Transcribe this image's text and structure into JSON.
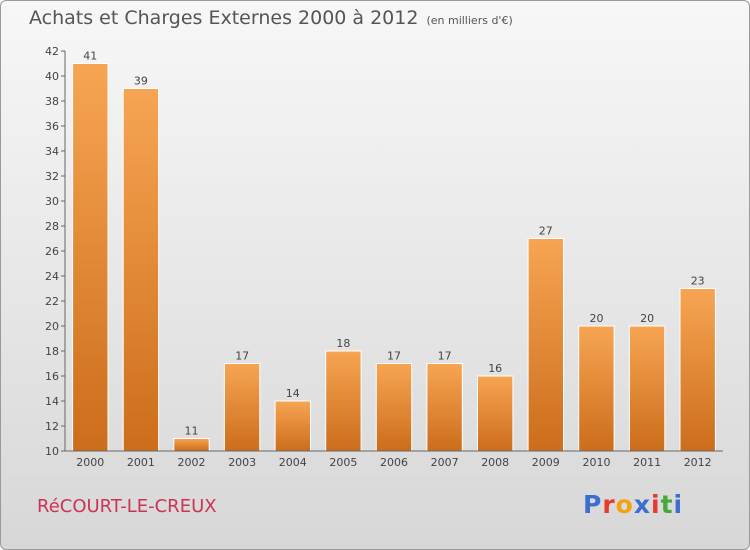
{
  "header": {
    "title": "Achats et Charges Externes 2000 à 2012",
    "unit_note": "(en milliers d'€)"
  },
  "footer": {
    "commune": "RéCOURT-LE-CREUX",
    "logo_text": "Proxiti",
    "logo_colors": [
      "#3a6fd1",
      "#e63a2e",
      "#f2a30f",
      "#3a6fd1",
      "#e63a2e",
      "#49a83a",
      "#3a6fd1"
    ]
  },
  "colors": {
    "bar_top": "#f7a553",
    "bar_bottom": "#cc6d1b",
    "axis": "#666666",
    "label": "#444444",
    "commune": "#cc3355"
  },
  "chart_data": {
    "type": "bar",
    "title": "Achats et Charges Externes 2000 à 2012",
    "subtitle": "(en milliers d'€)",
    "categories": [
      "2000",
      "2001",
      "2002",
      "2003",
      "2004",
      "2005",
      "2006",
      "2007",
      "2008",
      "2009",
      "2010",
      "2011",
      "2012"
    ],
    "values": [
      41,
      39,
      11,
      17,
      14,
      18,
      17,
      17,
      16,
      27,
      20,
      20,
      23
    ],
    "ylim": [
      10,
      42
    ],
    "yticks": [
      10,
      12,
      14,
      16,
      18,
      20,
      22,
      24,
      26,
      28,
      30,
      32,
      34,
      36,
      38,
      40,
      42
    ],
    "xlabel": "",
    "ylabel": "",
    "grid": false,
    "data_labels": true
  }
}
